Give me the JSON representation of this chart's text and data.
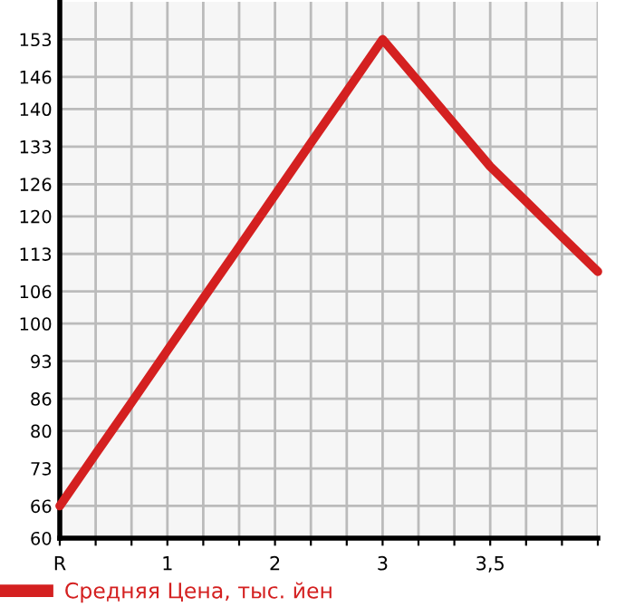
{
  "chart_data": {
    "type": "line",
    "categories": [
      "R",
      null,
      null,
      "1",
      null,
      null,
      "2",
      null,
      null,
      "3",
      null,
      null,
      "3,5",
      null,
      null,
      null
    ],
    "series": [
      {
        "name": "Средняя Цена, тыс. йен",
        "color": "#d42020",
        "values": [
          66,
          75.7,
          85.3,
          95,
          104.7,
          114.3,
          124,
          133.7,
          143.3,
          153,
          145.1,
          137.2,
          129.3,
          122.8,
          116.2,
          109.7
        ]
      }
    ],
    "ylim": [
      60,
      160
    ],
    "yticks": [
      60,
      66,
      73,
      80,
      86,
      93,
      100,
      106,
      113,
      120,
      126,
      133,
      140,
      146,
      153
    ],
    "grid": true,
    "legend": "bottom",
    "marker": "none",
    "line_style": "solid"
  }
}
